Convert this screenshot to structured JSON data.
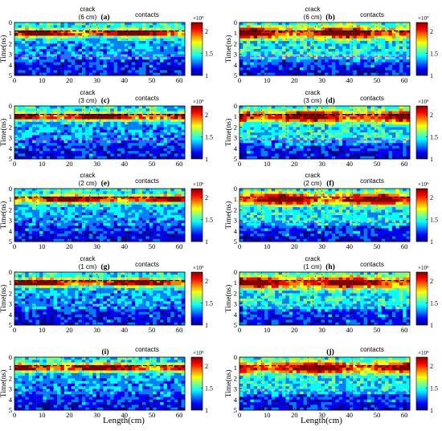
{
  "colors": {
    "colormap": [
      "#00008f",
      "#0000ff",
      "#0080ff",
      "#00ffff",
      "#80ff80",
      "#ffff00",
      "#ff8000",
      "#ff0000",
      "#800000"
    ],
    "black_dash": "#000000",
    "magenta_dash": "#ff00ff"
  },
  "chart_data": {
    "type": "heatmap",
    "xlabel": "Length(cm)",
    "ylabel": "Time(ns)",
    "xlim": [
      0,
      62
    ],
    "ylim": [
      5,
      0
    ],
    "x_ticks": [
      "0",
      "10",
      "20",
      "30",
      "40",
      "50",
      "60"
    ],
    "y_ticks": [
      "0",
      "1",
      "2",
      "3",
      "4",
      "5"
    ],
    "colorbar": {
      "exponent_label": "×10⁹",
      "range": [
        1,
        2.2
      ],
      "tick_values": [
        1,
        1.5,
        2
      ],
      "tick_labels": [
        "1",
        "1.5",
        "2"
      ]
    },
    "annotation_contacts": "contacts",
    "annotation_crack": "crack",
    "black_dashed_line_y": 0.8,
    "magenta_dashed_line_y": 3.2,
    "contact_x_positions": [
      8,
      17,
      25,
      41,
      50
    ],
    "panels": [
      {
        "id": "a",
        "label": "(a)",
        "crack_size": "(6 cm)",
        "crack_x": 29,
        "col": 0,
        "row": 0
      },
      {
        "id": "b",
        "label": "(b)",
        "crack_size": "(6 cm)",
        "crack_x": 29,
        "col": 1,
        "row": 0
      },
      {
        "id": "c",
        "label": "(c)",
        "crack_size": "(3 cm)",
        "crack_x": 29,
        "col": 0,
        "row": 1
      },
      {
        "id": "d",
        "label": "(d)",
        "crack_size": "(3 cm)",
        "crack_x": 29,
        "col": 1,
        "row": 1
      },
      {
        "id": "e",
        "label": "(e)",
        "crack_size": "(2 cm)",
        "crack_x": 29,
        "col": 0,
        "row": 2
      },
      {
        "id": "f",
        "label": "(f)",
        "crack_size": "(2 cm)",
        "crack_x": 29,
        "col": 1,
        "row": 2
      },
      {
        "id": "g",
        "label": "(g)",
        "crack_size": "(1 cm)",
        "crack_x": 29,
        "col": 0,
        "row": 3
      },
      {
        "id": "h",
        "label": "(h)",
        "crack_size": "(1 cm)",
        "crack_x": 29,
        "col": 1,
        "row": 3
      },
      {
        "id": "i",
        "label": "(i)",
        "crack_size": "",
        "crack_x": null,
        "col": 0,
        "row": 4
      },
      {
        "id": "j",
        "label": "(j)",
        "crack_size": "",
        "crack_x": null,
        "col": 1,
        "row": 4
      }
    ]
  }
}
